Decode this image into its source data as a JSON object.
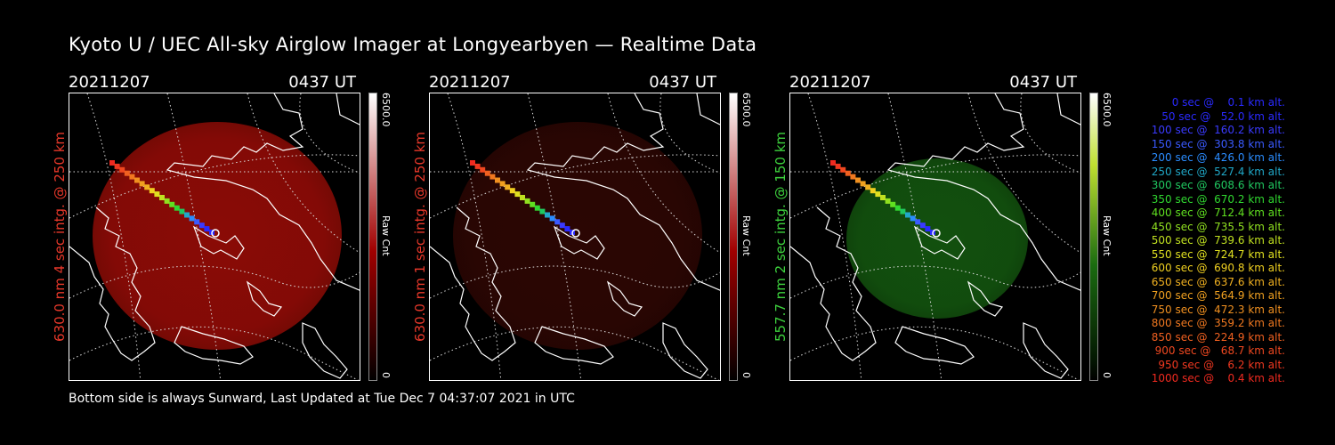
{
  "title": "Kyoto U / UEC All-sky Airglow Imager at Longyearbyen — Realtime Data",
  "footer": "Bottom side is always Sunward, Last Updated at Tue Dec  7 04:37:07 2021 in UTC",
  "panels": [
    {
      "date": "20211207",
      "time": "0437 UT",
      "label": "630.0 nm 4 sec intg. @ 250 km",
      "label_color": "#e8382a",
      "fill": "#8a0b06",
      "cbar_top": "#ffffff",
      "cbar_bottom": "#a00000",
      "cbar_max": "6500.0",
      "cbar_min": "0",
      "cbar_unit": "Raw Cnt",
      "brightness": 1.0
    },
    {
      "date": "20211207",
      "time": "0437 UT",
      "label": "630.0 nm 1 sec intg. @ 250 km",
      "label_color": "#e8382a",
      "fill": "#2b0603",
      "cbar_top": "#ffffff",
      "cbar_bottom": "#a00000",
      "cbar_max": "6500.0",
      "cbar_min": "0",
      "cbar_unit": "Raw Cnt",
      "brightness": 0.3
    },
    {
      "date": "20211207",
      "time": "0437 UT",
      "label": "557.7 nm 2 sec intg. @ 150 km",
      "label_color": "#3dd23d",
      "fill": "#12500e",
      "cbar_top": "#ffffff",
      "cbar_bottom": "#1a6b10",
      "cbar_max": "6500.0",
      "cbar_min": "0",
      "cbar_unit": "Raw Cnt",
      "brightness": 0.7
    }
  ],
  "legend": [
    {
      "text": "0 sec @    0.1 km alt.",
      "color": "#2a2aff"
    },
    {
      "text": "50 sec @   52.0 km alt.",
      "color": "#2a2aff"
    },
    {
      "text": "100 sec @  160.2 km alt.",
      "color": "#3a3aff"
    },
    {
      "text": "150 sec @  303.8 km alt.",
      "color": "#3a5aff"
    },
    {
      "text": "200 sec @  426.0 km alt.",
      "color": "#2a8cff"
    },
    {
      "text": "250 sec @  527.4 km alt.",
      "color": "#20a8c8"
    },
    {
      "text": "300 sec @  608.6 km alt.",
      "color": "#20c860"
    },
    {
      "text": "350 sec @  670.2 km alt.",
      "color": "#30d830"
    },
    {
      "text": "400 sec @  712.4 km alt.",
      "color": "#60e020"
    },
    {
      "text": "450 sec @  735.5 km alt.",
      "color": "#90e020"
    },
    {
      "text": "500 sec @  739.6 km alt.",
      "color": "#c0e020"
    },
    {
      "text": "550 sec @  724.7 km alt.",
      "color": "#e0e020"
    },
    {
      "text": "600 sec @  690.8 km alt.",
      "color": "#f0d020"
    },
    {
      "text": "650 sec @  637.6 km alt.",
      "color": "#f0b020"
    },
    {
      "text": "700 sec @  564.9 km alt.",
      "color": "#f0a020"
    },
    {
      "text": "750 sec @  472.3 km alt.",
      "color": "#f09020"
    },
    {
      "text": "800 sec @  359.2 km alt.",
      "color": "#f07820"
    },
    {
      "text": "850 sec @  224.9 km alt.",
      "color": "#f06020"
    },
    {
      "text": "900 sec @   68.7 km alt.",
      "color": "#f04820"
    },
    {
      "text": "950 sec @    6.2 km alt.",
      "color": "#f03820"
    },
    {
      "text": "1000 sec @    0.4 km alt.",
      "color": "#f02a20"
    }
  ]
}
